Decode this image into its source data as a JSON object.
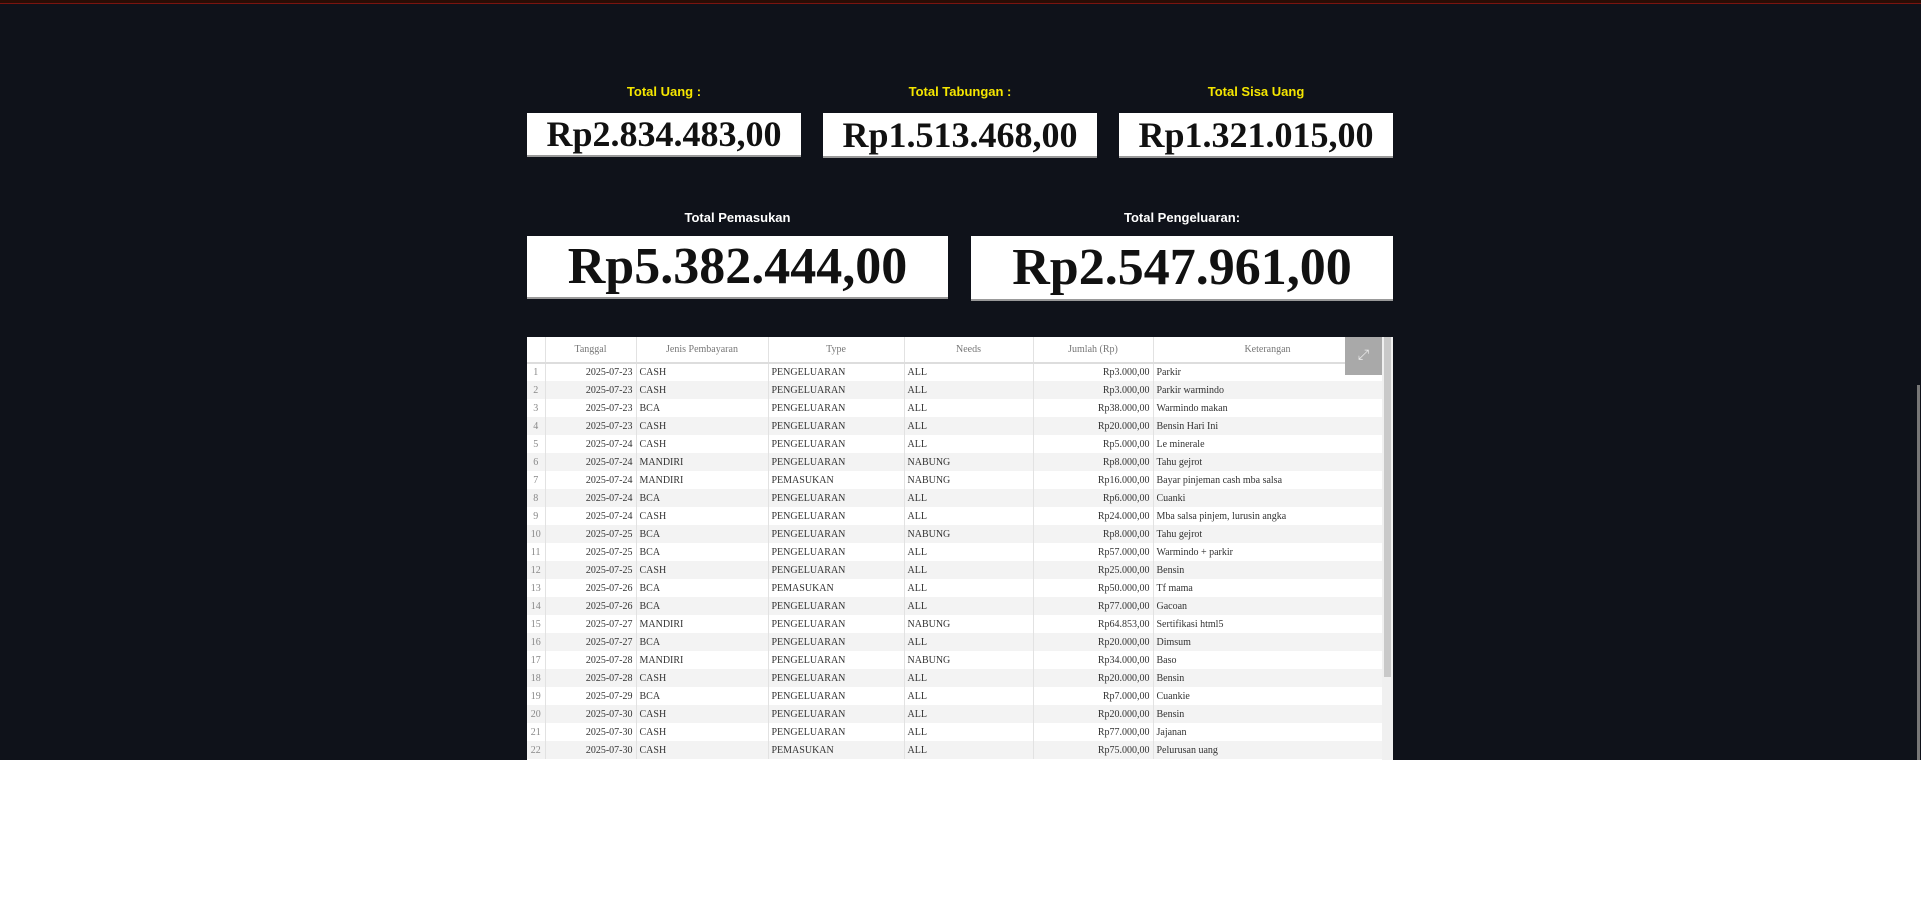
{
  "summary": {
    "total_uang": {
      "label": "Total Uang :",
      "value": "Rp2.834.483,00"
    },
    "total_tabungan": {
      "label": "Total Tabungan :",
      "value": "Rp1.513.468,00"
    },
    "total_sisa": {
      "label": "Total Sisa Uang",
      "value": "Rp1.321.015,00"
    },
    "total_pemasukan": {
      "label": "Total Pemasukan",
      "value": "Rp5.382.444,00"
    },
    "total_pengeluaran": {
      "label": "Total Pengeluaran:",
      "value": "Rp2.547.961,00"
    }
  },
  "colors": {
    "label_accent": "#f5e600",
    "background": "#0f121a"
  },
  "table": {
    "expand_icon": "open-in-new-icon",
    "headers": [
      "",
      "Tanggal",
      "Jenis Pembayaran",
      "Type",
      "Needs",
      "Jumlah (Rp)",
      "Keterangan"
    ],
    "rows": [
      [
        "1",
        "2025-07-23",
        "CASH",
        "PENGELUARAN",
        "ALL",
        "Rp3.000,00",
        "Parkir"
      ],
      [
        "2",
        "2025-07-23",
        "CASH",
        "PENGELUARAN",
        "ALL",
        "Rp3.000,00",
        "Parkir warmindo"
      ],
      [
        "3",
        "2025-07-23",
        "BCA",
        "PENGELUARAN",
        "ALL",
        "Rp38.000,00",
        "Warmindo makan"
      ],
      [
        "4",
        "2025-07-23",
        "CASH",
        "PENGELUARAN",
        "ALL",
        "Rp20.000,00",
        "Bensin Hari Ini"
      ],
      [
        "5",
        "2025-07-24",
        "CASH",
        "PENGELUARAN",
        "ALL",
        "Rp5.000,00",
        "Le minerale"
      ],
      [
        "6",
        "2025-07-24",
        "MANDIRI",
        "PENGELUARAN",
        "NABUNG",
        "Rp8.000,00",
        "Tahu gejrot"
      ],
      [
        "7",
        "2025-07-24",
        "MANDIRI",
        "PEMASUKAN",
        "NABUNG",
        "Rp16.000,00",
        "Bayar pinjeman cash mba salsa"
      ],
      [
        "8",
        "2025-07-24",
        "BCA",
        "PENGELUARAN",
        "ALL",
        "Rp6.000,00",
        "Cuanki"
      ],
      [
        "9",
        "2025-07-24",
        "CASH",
        "PENGELUARAN",
        "ALL",
        "Rp24.000,00",
        "Mba salsa pinjem, lurusin angka"
      ],
      [
        "10",
        "2025-07-25",
        "BCA",
        "PENGELUARAN",
        "NABUNG",
        "Rp8.000,00",
        "Tahu gejrot"
      ],
      [
        "11",
        "2025-07-25",
        "BCA",
        "PENGELUARAN",
        "ALL",
        "Rp57.000,00",
        "Warmindo + parkir"
      ],
      [
        "12",
        "2025-07-25",
        "CASH",
        "PENGELUARAN",
        "ALL",
        "Rp25.000,00",
        "Bensin"
      ],
      [
        "13",
        "2025-07-26",
        "BCA",
        "PEMASUKAN",
        "ALL",
        "Rp50.000,00",
        "Tf mama"
      ],
      [
        "14",
        "2025-07-26",
        "BCA",
        "PENGELUARAN",
        "ALL",
        "Rp77.000,00",
        "Gacoan"
      ],
      [
        "15",
        "2025-07-27",
        "MANDIRI",
        "PENGELUARAN",
        "NABUNG",
        "Rp64.853,00",
        "Sertifikasi html5"
      ],
      [
        "16",
        "2025-07-27",
        "BCA",
        "PENGELUARAN",
        "ALL",
        "Rp20.000,00",
        "Dimsum"
      ],
      [
        "17",
        "2025-07-28",
        "MANDIRI",
        "PENGELUARAN",
        "NABUNG",
        "Rp34.000,00",
        "Baso"
      ],
      [
        "18",
        "2025-07-28",
        "CASH",
        "PENGELUARAN",
        "ALL",
        "Rp20.000,00",
        "Bensin"
      ],
      [
        "19",
        "2025-07-29",
        "BCA",
        "PENGELUARAN",
        "ALL",
        "Rp7.000,00",
        "Cuankie"
      ],
      [
        "20",
        "2025-07-30",
        "CASH",
        "PENGELUARAN",
        "ALL",
        "Rp20.000,00",
        "Bensin"
      ],
      [
        "21",
        "2025-07-30",
        "CASH",
        "PENGELUARAN",
        "ALL",
        "Rp77.000,00",
        "Jajanan"
      ],
      [
        "22",
        "2025-07-30",
        "CASH",
        "PEMASUKAN",
        "ALL",
        "Rp75.000,00",
        "Pelurusan uang"
      ]
    ]
  }
}
